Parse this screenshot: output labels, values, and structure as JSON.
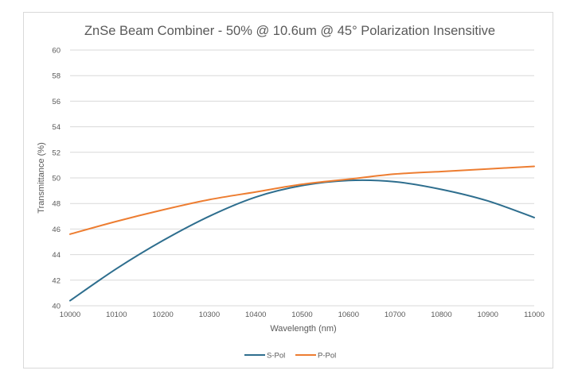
{
  "chart_data": {
    "type": "line",
    "title": "ZnSe Beam Combiner - 50% @ 10.6um @ 45° Polarization Insensitive",
    "xlabel": "Wavelength (nm)",
    "ylabel": "Transmittance (%)",
    "xlim": [
      10000,
      11000
    ],
    "ylim": [
      40,
      60
    ],
    "xticks": [
      "10000",
      "10100",
      "10200",
      "10300",
      "10400",
      "10500",
      "10600",
      "10700",
      "10800",
      "10900",
      "11000"
    ],
    "yticks": [
      "40",
      "42",
      "44",
      "46",
      "48",
      "50",
      "52",
      "54",
      "56",
      "58",
      "60"
    ],
    "grid": "horizontal",
    "legend_position": "bottom",
    "x": [
      10000,
      10100,
      10200,
      10300,
      10400,
      10500,
      10600,
      10700,
      10800,
      10900,
      11000
    ],
    "series": [
      {
        "name": "S-Pol",
        "color": "#2e6e8e",
        "values": [
          40.4,
          42.9,
          45.1,
          47.0,
          48.5,
          49.4,
          49.8,
          49.7,
          49.1,
          48.2,
          46.9
        ]
      },
      {
        "name": "P-Pol",
        "color": "#ed7d31",
        "values": [
          45.6,
          46.6,
          47.5,
          48.3,
          48.9,
          49.5,
          49.9,
          50.3,
          50.5,
          50.7,
          50.9
        ]
      }
    ]
  }
}
